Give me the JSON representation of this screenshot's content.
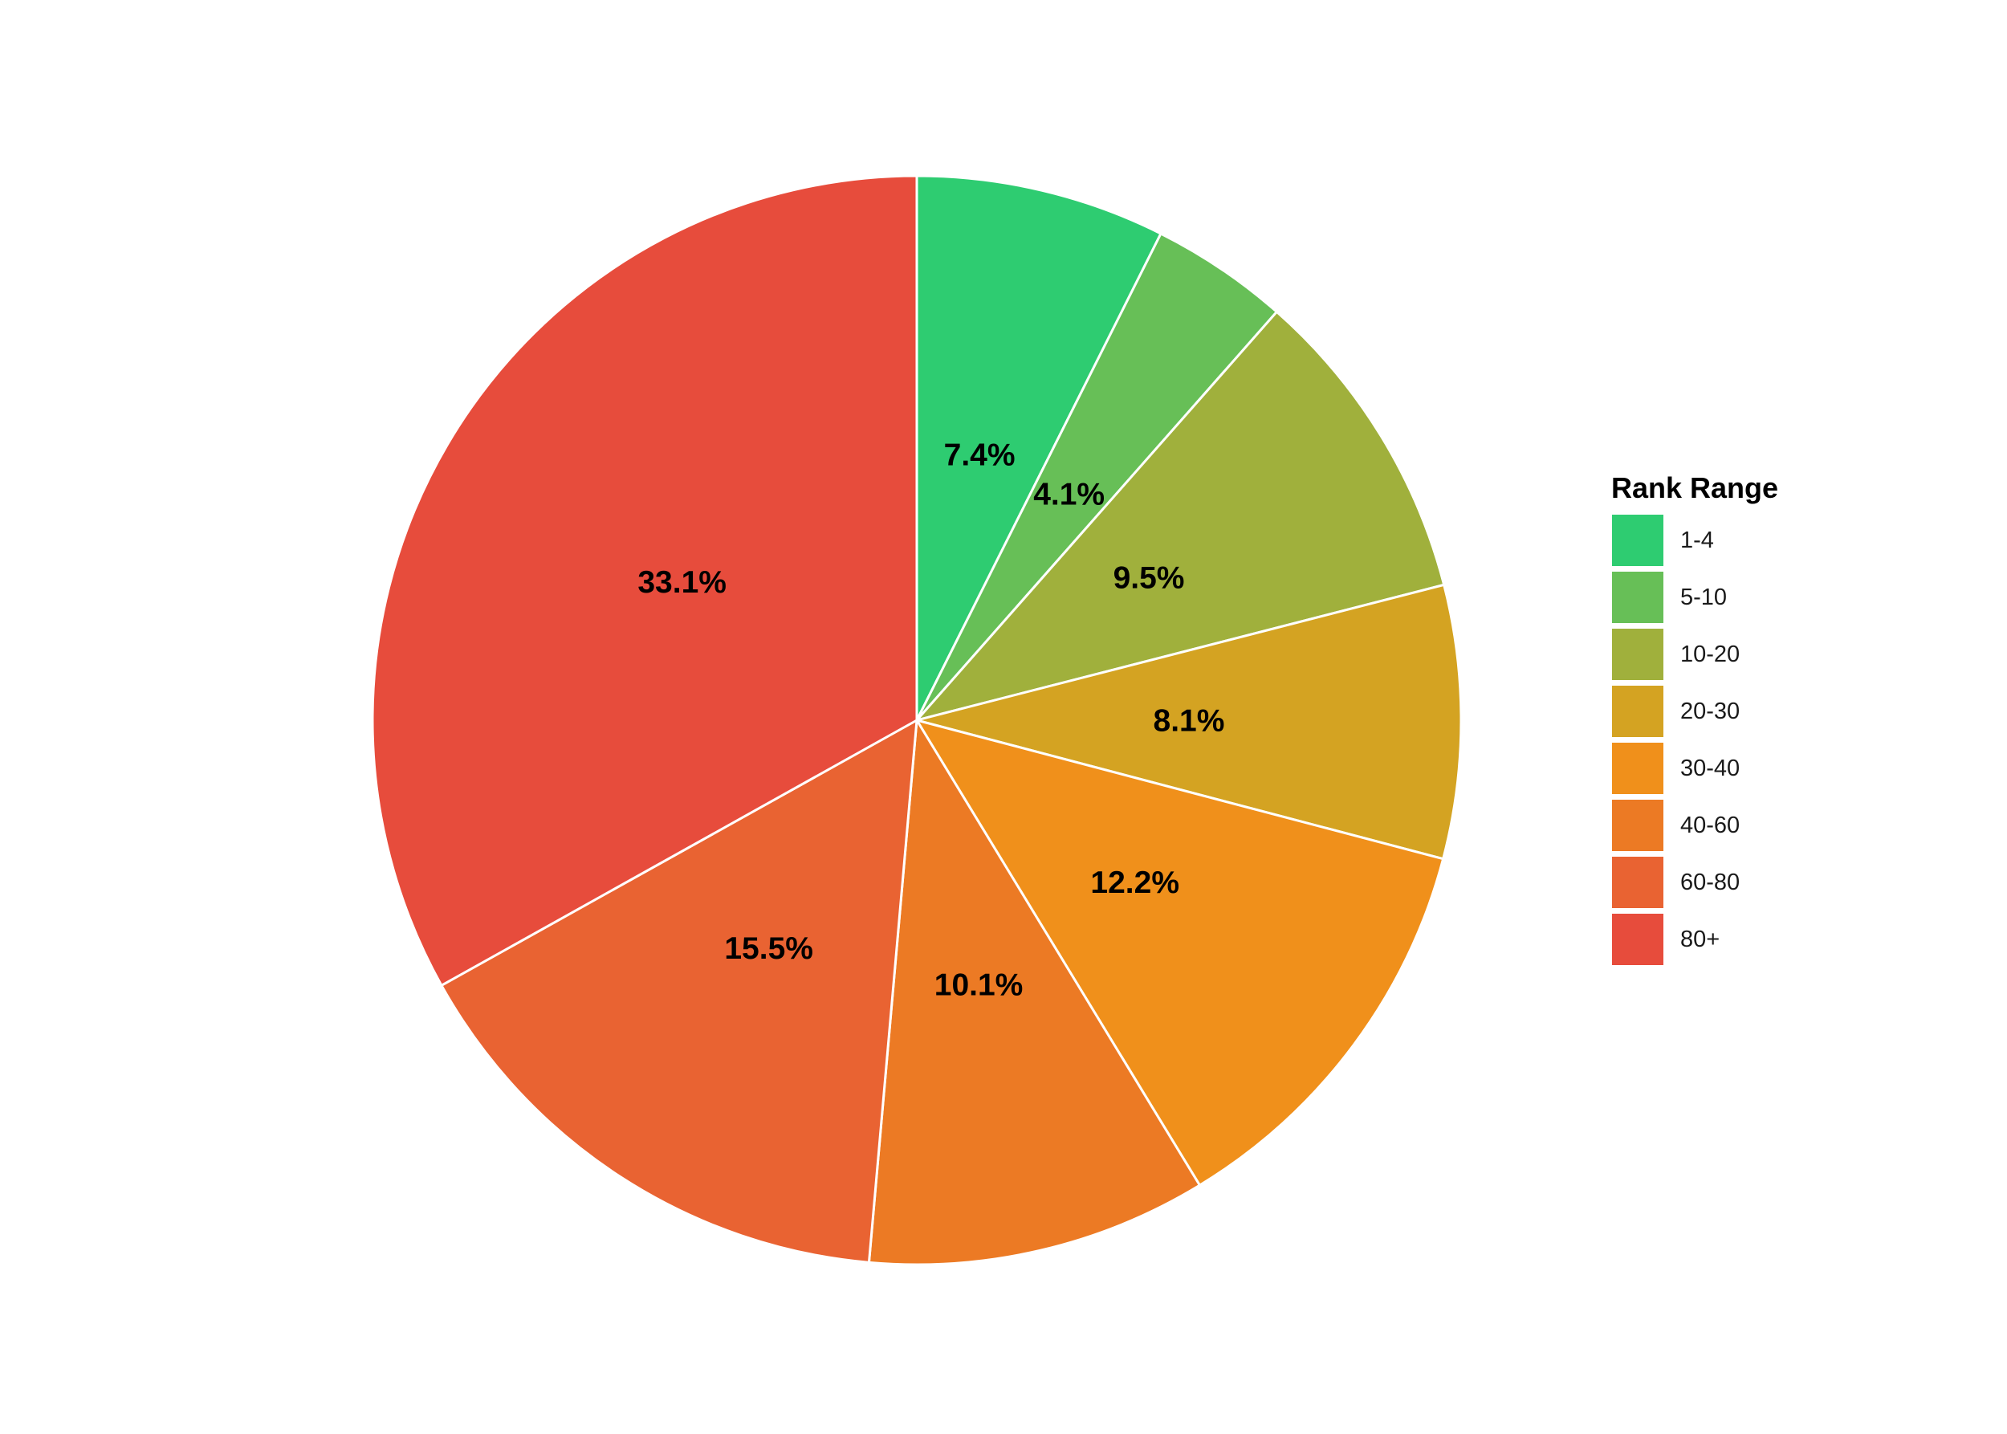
{
  "chart_data": {
    "type": "pie",
    "title": "",
    "legend_title": "Rank Range",
    "legend_position": "right",
    "start_angle": "12 o'clock, clockwise",
    "categories": [
      "1-4",
      "5-10",
      "10-20",
      "20-30",
      "30-40",
      "40-60",
      "60-80",
      "80+"
    ],
    "values": [
      7.4,
      4.1,
      9.5,
      8.1,
      12.2,
      10.1,
      15.5,
      33.1
    ],
    "labels": [
      "7.4%",
      "4.1%",
      "9.5%",
      "8.1%",
      "12.2%",
      "10.1%",
      "15.5%",
      "33.1%"
    ],
    "colors": [
      "#2ECC71",
      "#67BF57",
      "#A0B03C",
      "#D4A322",
      "#F0901B",
      "#EC7A24",
      "#E96332",
      "#E74C3C"
    ]
  }
}
